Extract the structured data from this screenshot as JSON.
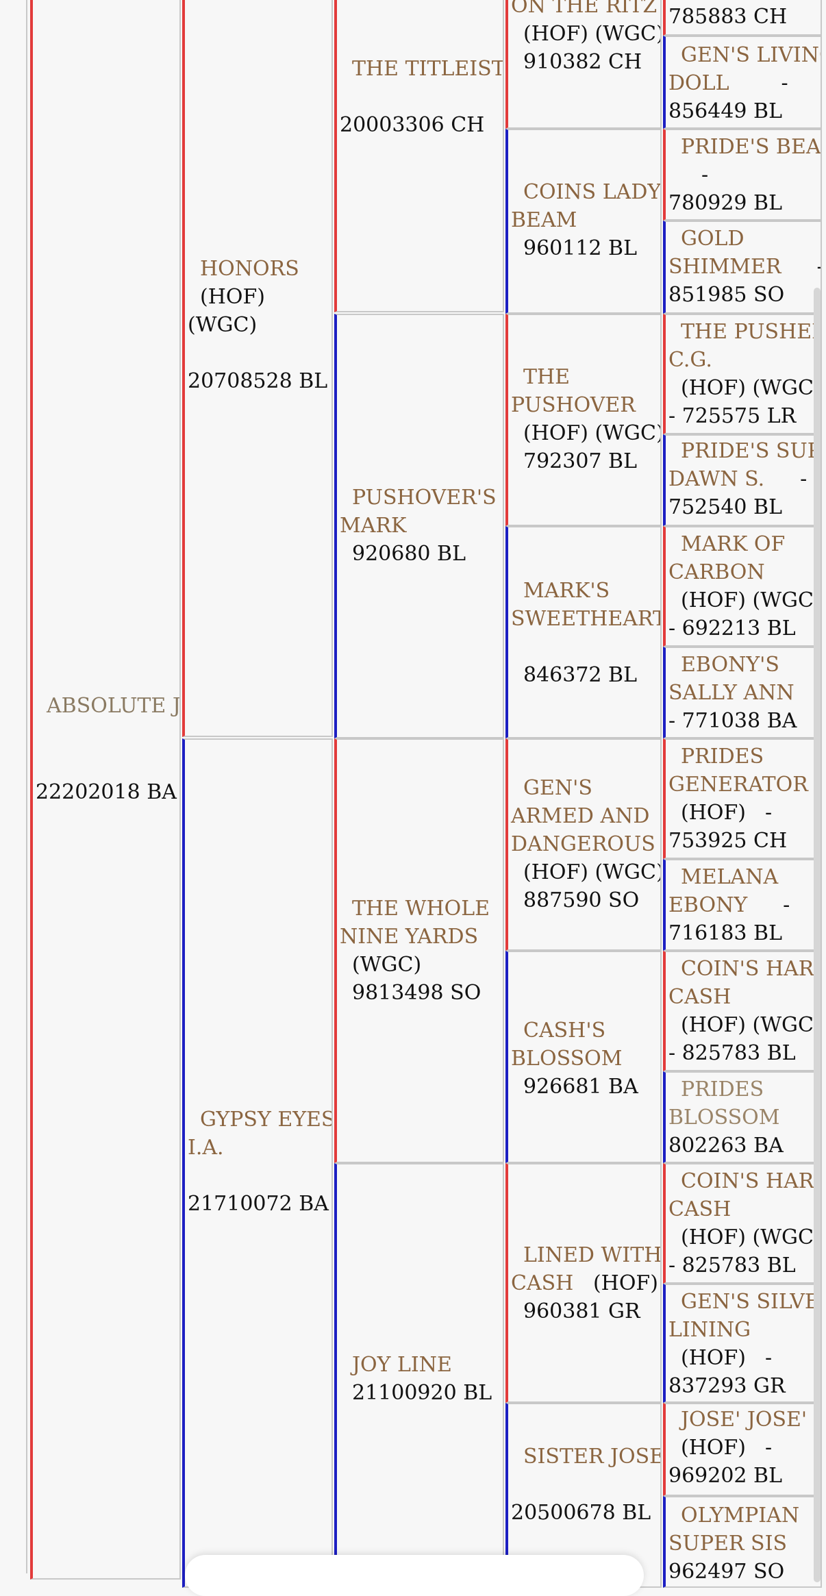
{
  "pedigree": {
    "subject": {
      "name": "ABSOLUTE JC",
      "reg": "22202018 BA"
    },
    "gen1": [
      {
        "name": "HONORS",
        "titles": [
          "(HOF)",
          "(WGC)"
        ],
        "reg": "20708528 BL"
      },
      {
        "name": "GYPSY EYES I.A.",
        "name_lines": [
          "GYPSY EYES",
          "I.A."
        ],
        "reg": "21710072 BA"
      }
    ],
    "gen2": [
      {
        "name": "THE TITLEIST",
        "reg": "20003306 CH"
      },
      {
        "name": "PUSHOVER'S MARK",
        "name_lines": [
          "PUSHOVER'S",
          "MARK"
        ],
        "reg": "920680 BL"
      },
      {
        "name": "THE WHOLE NINE YARDS",
        "name_lines": [
          "THE WHOLE",
          "NINE YARDS"
        ],
        "titles": "(WGC)",
        "reg": "9813498 SO"
      },
      {
        "name": "JOY LINE",
        "reg": "21100920 BL"
      }
    ],
    "gen3": [
      {
        "name": "ON THE RITZ",
        "titles": "(HOF) (WGC)",
        "reg": "910382 CH"
      },
      {
        "name": "COINS LADY BEAM",
        "name_lines": [
          "COINS LADY",
          "BEAM"
        ],
        "reg": "960112 BL"
      },
      {
        "name": "THE PUSHOVER",
        "name_lines": [
          "THE",
          "PUSHOVER"
        ],
        "titles": "(HOF) (WGC)",
        "reg": "792307 BL"
      },
      {
        "name": "MARK'S SWEETHEART",
        "name_lines": [
          "MARK'S",
          "SWEETHEART"
        ],
        "reg": "846372 BL"
      },
      {
        "name": "GEN'S ARMED AND DANGEROUS",
        "name_lines": [
          "GEN'S",
          "ARMED AND",
          "DANGEROUS"
        ],
        "titles": "(HOF) (WGC)",
        "reg": "887590 SO"
      },
      {
        "name": "CASH'S BLOSSOM",
        "name_lines": [
          "CASH'S",
          "BLOSSOM"
        ],
        "reg": "926681 BA"
      },
      {
        "name": "LINED WITH CASH",
        "name_lines": [
          "LINED WITH",
          "CASH"
        ],
        "titles": "(HOF)",
        "reg": "960381 GR"
      },
      {
        "name": "SISTER JOSE",
        "reg": "20500678 BL"
      }
    ],
    "gen4": [
      {
        "reg_line": "785883 CH"
      },
      {
        "name_lines": [
          "GEN'S LIVING",
          "DOLL"
        ],
        "reg_line": "856449 BL"
      },
      {
        "name_lines": [
          "PRIDE'S BEAM"
        ],
        "reg_line": "780929 BL"
      },
      {
        "name_lines": [
          "GOLD",
          "SHIMMER"
        ],
        "reg_line": "851985 SO"
      },
      {
        "name_lines": [
          "THE PUSHER",
          "C.G."
        ],
        "titles": "(HOF) (WGC)",
        "reg_line": "- 725575 LR"
      },
      {
        "name_lines": [
          "PRIDE'S SUPER",
          "DAWN S."
        ],
        "reg_line": "752540 BL"
      },
      {
        "name_lines": [
          "MARK OF",
          "CARBON"
        ],
        "titles": "(HOF) (WGC)",
        "reg_line": "- 692213 BL"
      },
      {
        "name_lines": [
          "EBONY'S",
          "SALLY ANN"
        ],
        "reg_line": "- 771038 BA"
      },
      {
        "name_lines": [
          "PRIDES",
          "GENERATOR"
        ],
        "titles": "(HOF)",
        "reg_line": "753925 CH"
      },
      {
        "name_lines": [
          "MELANA",
          "EBONY"
        ],
        "reg_line": "716183 BL"
      },
      {
        "name_lines": [
          "COIN'S HARD",
          "CASH"
        ],
        "titles": "(HOF) (WGC)",
        "reg_line": "- 825783 BL"
      },
      {
        "name_lines": [
          "PRIDES",
          "BLOSSOM"
        ],
        "reg_line": "802263 BA"
      },
      {
        "name_lines": [
          "COIN'S HARD",
          "CASH"
        ],
        "titles": "(HOF) (WGC)",
        "reg_line": "- 825783 BL"
      },
      {
        "name_lines": [
          "GEN'S SILVER",
          "LINING"
        ],
        "titles": "(HOF)",
        "reg_line": "837293 GR"
      },
      {
        "name_lines": [
          "JOSE' JOSE'"
        ],
        "titles": "(HOF)",
        "reg_line": "969202 BL"
      },
      {
        "name_lines": [
          "OLYMPIAN",
          "SUPER SIS"
        ],
        "reg_line": "962497 SO"
      }
    ],
    "dash": "-"
  },
  "colors": {
    "sire_line": "#e23b3b",
    "dam_line": "#1d1fc2",
    "name_text": "#8b6540"
  }
}
